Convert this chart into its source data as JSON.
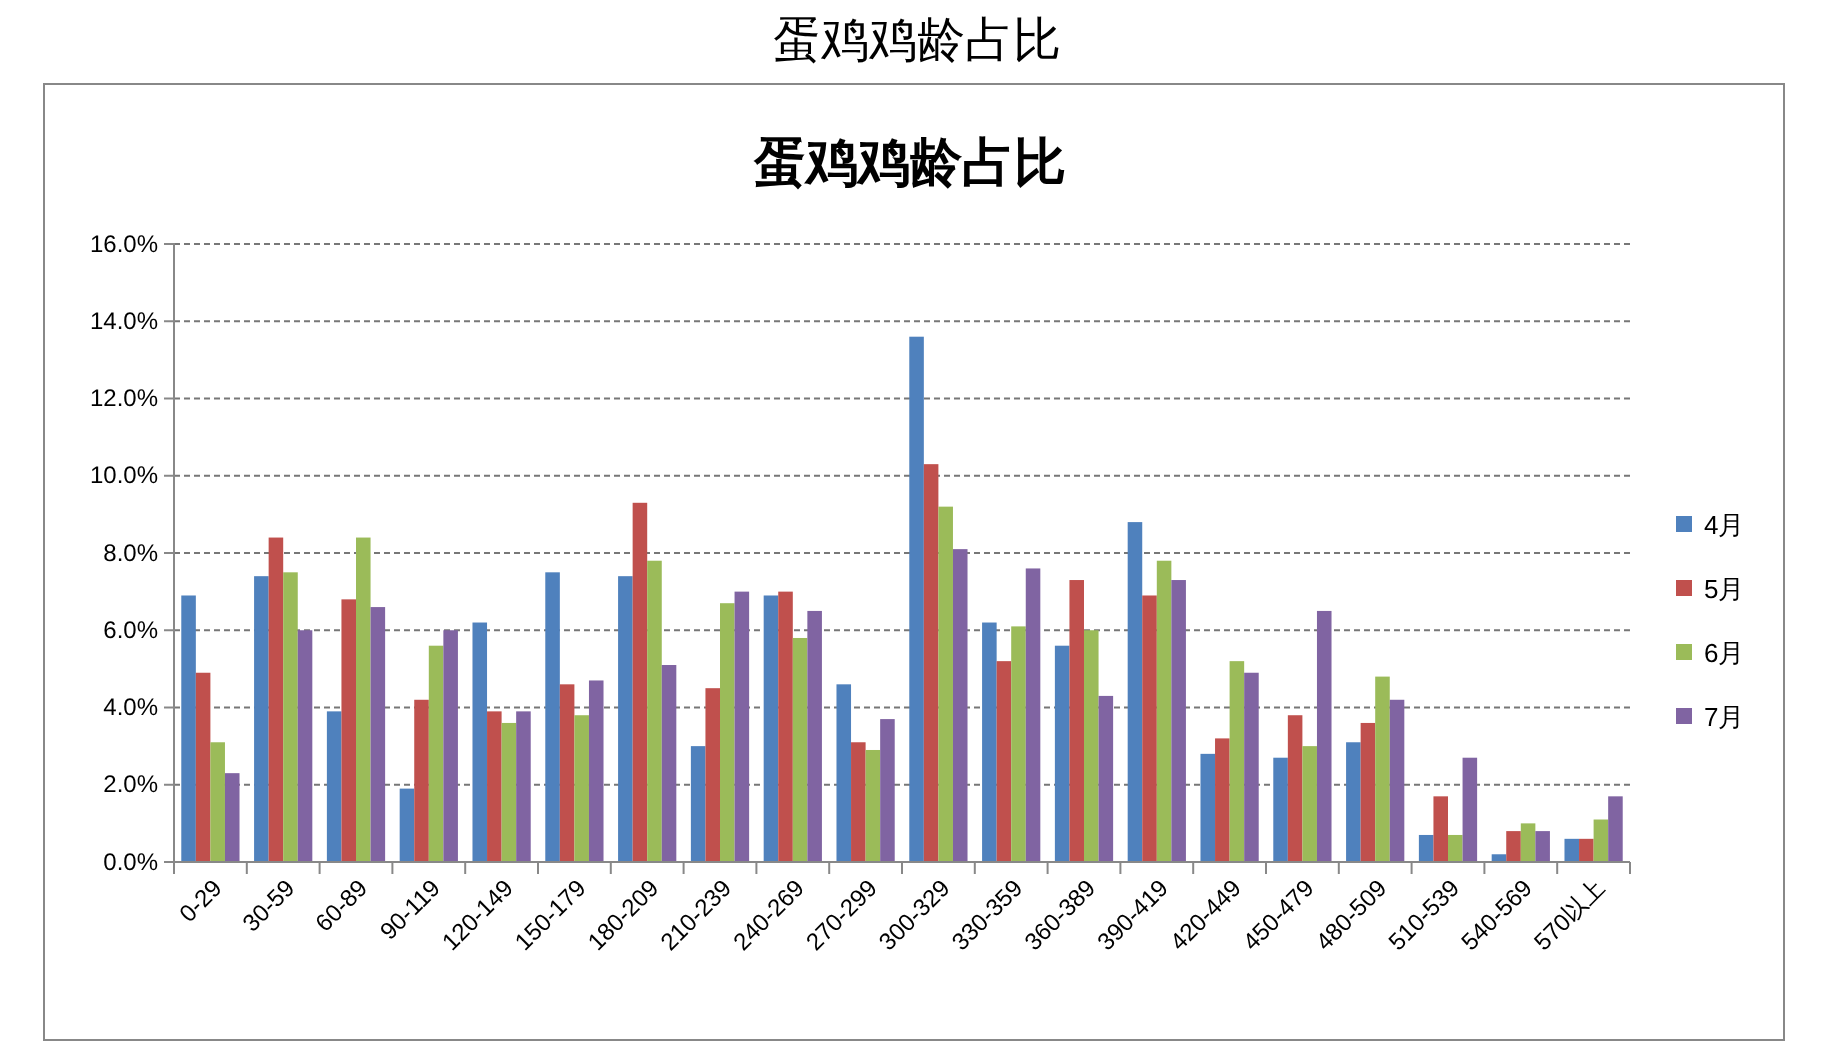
{
  "chart_data": {
    "type": "bar",
    "title": "蛋鸡鸡龄占比",
    "annotations": [
      "蛋鸡鸡龄占比"
    ],
    "categories": [
      "0-29",
      "30-59",
      "60-89",
      "90-119",
      "120-149",
      "150-179",
      "180-209",
      "210-239",
      "240-269",
      "270-299",
      "300-329",
      "330-359",
      "360-389",
      "390-419",
      "420-449",
      "450-479",
      "480-509",
      "510-539",
      "540-569",
      "570以上"
    ],
    "series": [
      {
        "name": "4月",
        "color": "#4f81bd",
        "values": [
          6.9,
          7.4,
          3.9,
          1.9,
          6.2,
          7.5,
          7.4,
          3.0,
          6.9,
          4.6,
          13.6,
          6.2,
          5.6,
          8.8,
          2.8,
          2.7,
          3.1,
          0.7,
          0.2,
          0.6
        ]
      },
      {
        "name": "5月",
        "color": "#c0504d",
        "values": [
          4.9,
          8.4,
          6.8,
          4.2,
          3.9,
          4.6,
          9.3,
          4.5,
          7.0,
          3.1,
          10.3,
          5.2,
          7.3,
          6.9,
          3.2,
          3.8,
          3.6,
          1.7,
          0.8,
          0.6
        ]
      },
      {
        "name": "6月",
        "color": "#9bbb59",
        "values": [
          3.1,
          7.5,
          8.4,
          5.6,
          3.6,
          3.8,
          7.8,
          6.7,
          5.8,
          2.9,
          9.2,
          6.1,
          6.0,
          7.8,
          5.2,
          3.0,
          4.8,
          0.7,
          1.0,
          1.1
        ]
      },
      {
        "name": "7月",
        "color": "#8064a2",
        "values": [
          2.3,
          6.0,
          6.6,
          6.0,
          3.9,
          4.7,
          5.1,
          7.0,
          6.5,
          3.7,
          8.1,
          7.6,
          4.3,
          7.3,
          4.9,
          6.5,
          4.2,
          2.7,
          0.8,
          1.7
        ]
      }
    ],
    "ylim": [
      0,
      16
    ],
    "yticks": [
      {
        "value": 0,
        "label": "0.0%"
      },
      {
        "value": 2,
        "label": "2.0%"
      },
      {
        "value": 4,
        "label": "4.0%"
      },
      {
        "value": 6,
        "label": "6.0%"
      },
      {
        "value": 8,
        "label": "8.0%"
      },
      {
        "value": 10,
        "label": "10.0%"
      },
      {
        "value": 12,
        "label": "12.0%"
      },
      {
        "value": 14,
        "label": "14.0%"
      },
      {
        "value": 16,
        "label": "16.0%"
      }
    ],
    "grid": "y",
    "legend": "right"
  }
}
